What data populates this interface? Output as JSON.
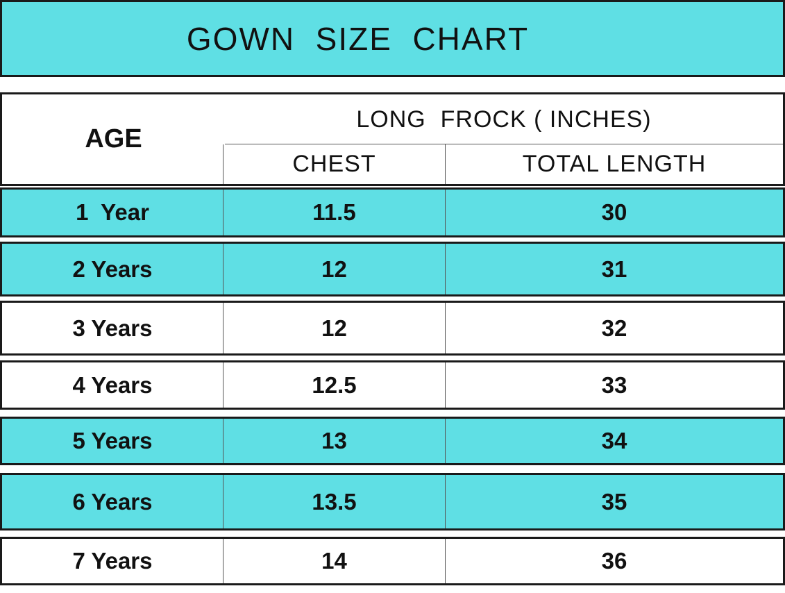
{
  "header": {
    "title": "GOWN  SIZE  CHART"
  },
  "table": {
    "age_header": "AGE",
    "group_header": "LONG  FROCK ( INCHES)",
    "columns": [
      "CHEST",
      "TOTAL LENGTH"
    ],
    "rows": [
      [
        "1  Year",
        "11.5",
        "30"
      ],
      [
        "2 Years",
        "12",
        "31"
      ],
      [
        "3 Years",
        "12",
        "32"
      ],
      [
        "4 Years",
        "12.5",
        "33"
      ],
      [
        "5 Years",
        "13",
        "34"
      ],
      [
        "6 Years",
        "13.5",
        "35"
      ],
      [
        "7 Years",
        "14",
        "36"
      ]
    ]
  }
}
